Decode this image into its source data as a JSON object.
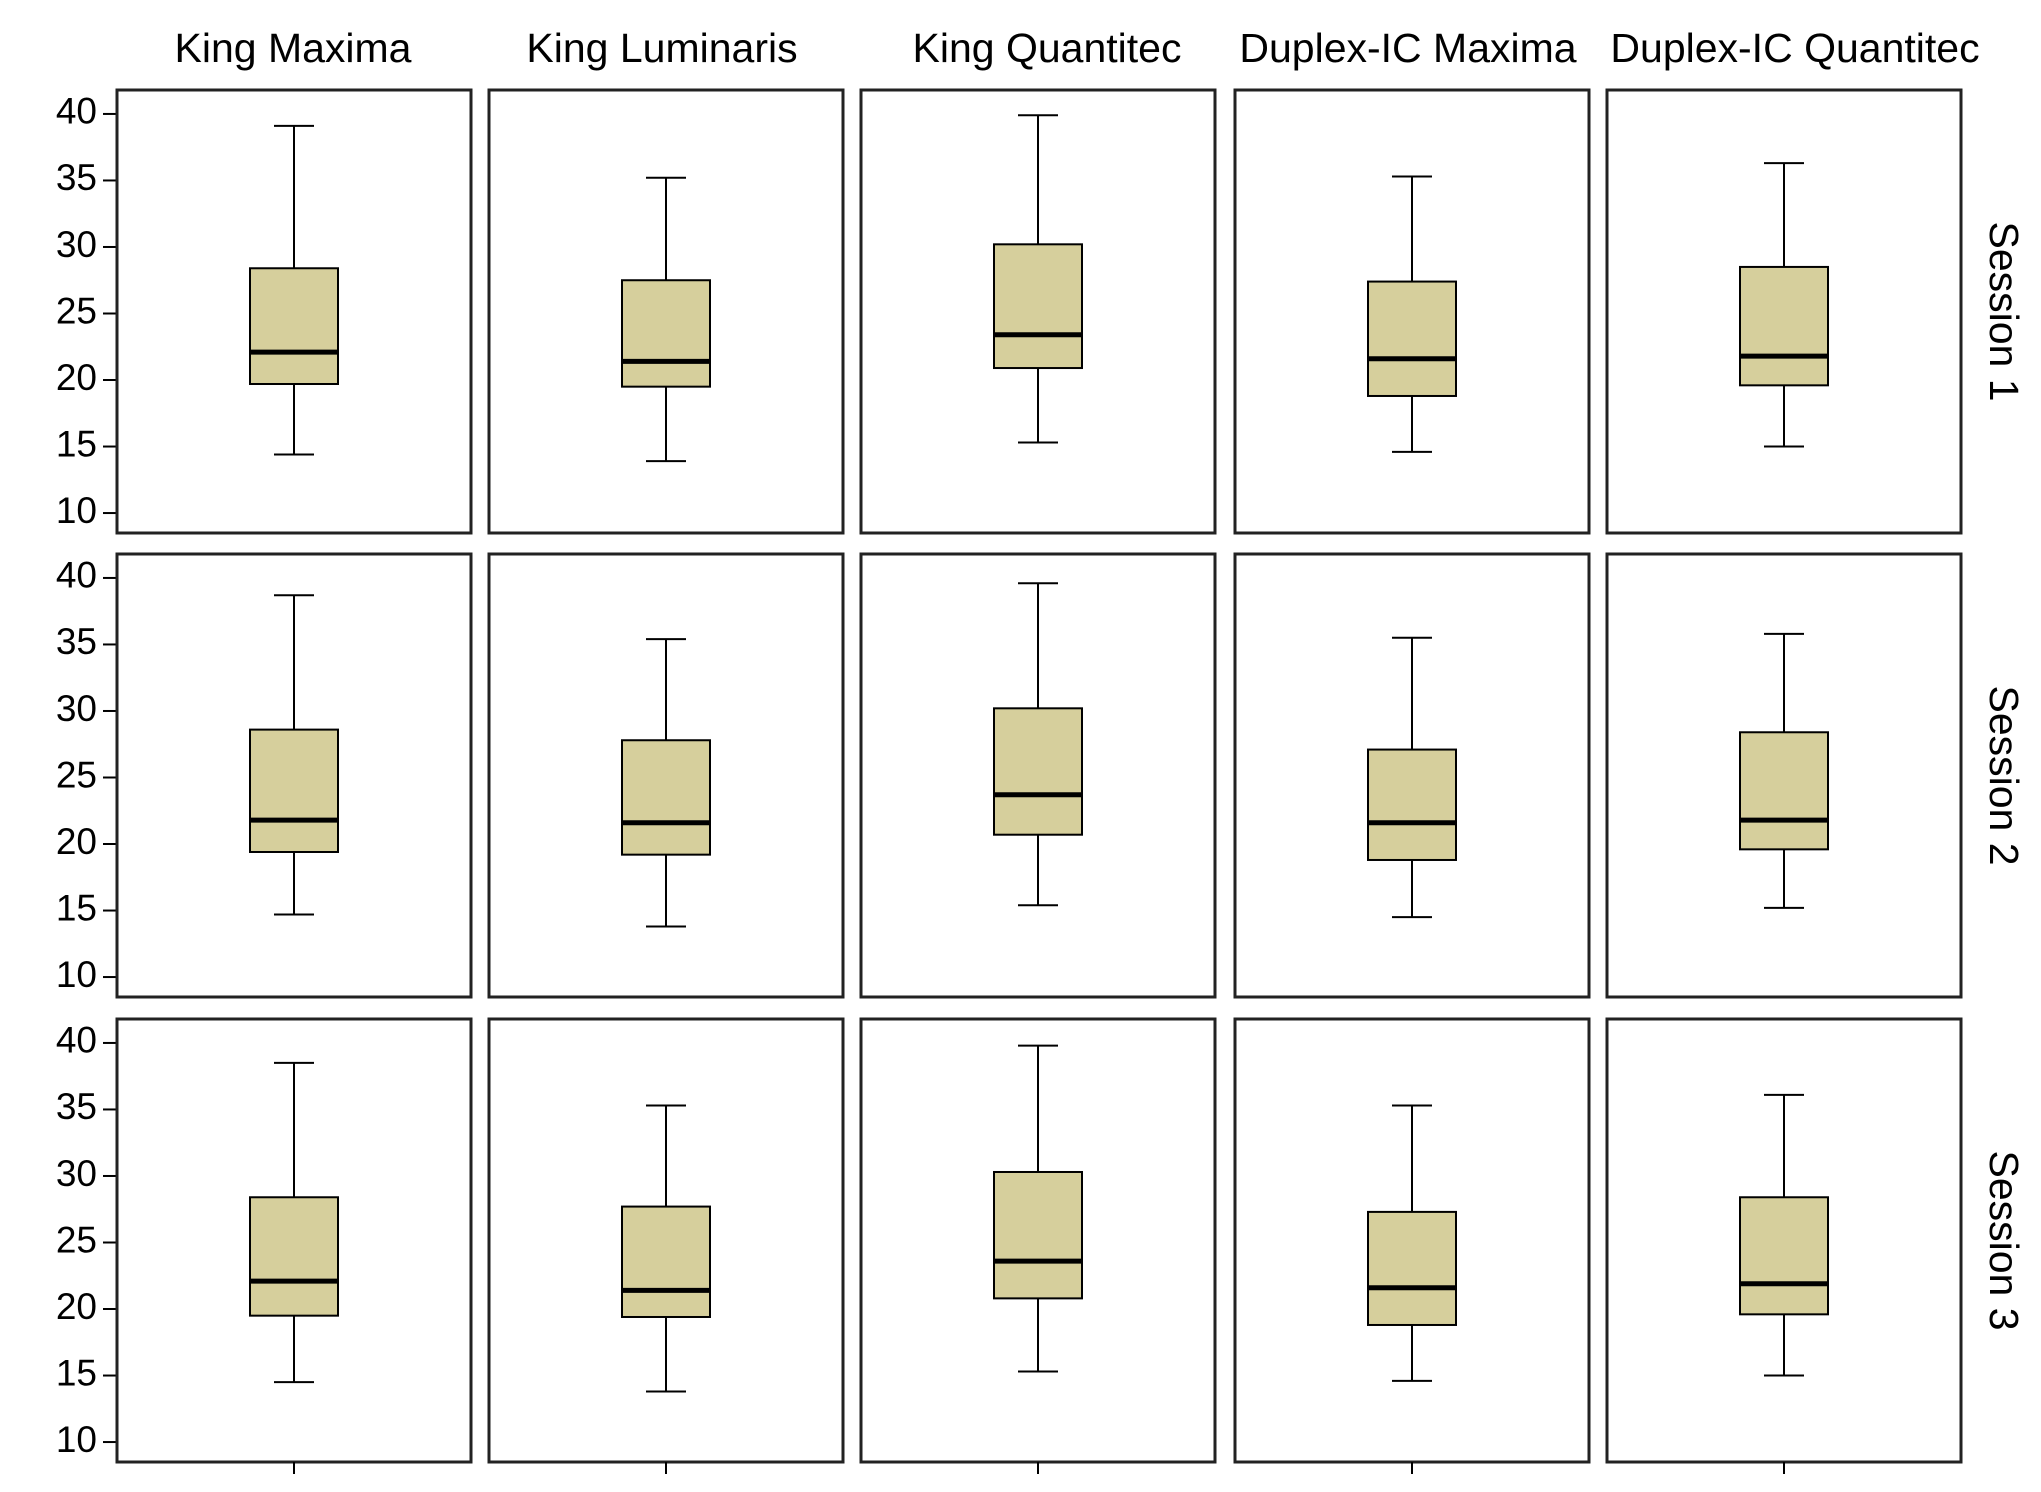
{
  "chart_data": {
    "type": "box",
    "columns": [
      "King Maxima",
      "King Luminaris",
      "King Quantitec",
      "Duplex-IC Maxima",
      "Duplex-IC Quantitec"
    ],
    "rows": [
      "Session 1",
      "Session 2",
      "Session 3"
    ],
    "ylim": [
      8.5,
      41.8
    ],
    "yticks": [
      10,
      15,
      20,
      25,
      30,
      35,
      40
    ],
    "ytick_labels": [
      "10",
      "15",
      "20",
      "25",
      "30",
      "35",
      "40"
    ],
    "grid": false,
    "box_color": "#d6cf9c",
    "line_color": "#000000",
    "data": [
      [
        {
          "min": 14.4,
          "q1": 19.7,
          "median": 22.1,
          "q3": 28.4,
          "max": 39.1
        },
        {
          "min": 13.9,
          "q1": 19.5,
          "median": 21.4,
          "q3": 27.5,
          "max": 35.2
        },
        {
          "min": 15.3,
          "q1": 20.9,
          "median": 23.4,
          "q3": 30.2,
          "max": 39.9
        },
        {
          "min": 14.6,
          "q1": 18.8,
          "median": 21.6,
          "q3": 27.4,
          "max": 35.3
        },
        {
          "min": 15.0,
          "q1": 19.6,
          "median": 21.8,
          "q3": 28.5,
          "max": 36.3
        }
      ],
      [
        {
          "min": 14.7,
          "q1": 19.4,
          "median": 21.8,
          "q3": 28.6,
          "max": 38.7
        },
        {
          "min": 13.8,
          "q1": 19.2,
          "median": 21.6,
          "q3": 27.8,
          "max": 35.4
        },
        {
          "min": 15.4,
          "q1": 20.7,
          "median": 23.7,
          "q3": 30.2,
          "max": 39.6
        },
        {
          "min": 14.5,
          "q1": 18.8,
          "median": 21.6,
          "q3": 27.1,
          "max": 35.5
        },
        {
          "min": 15.2,
          "q1": 19.6,
          "median": 21.8,
          "q3": 28.4,
          "max": 35.8
        }
      ],
      [
        {
          "min": 14.5,
          "q1": 19.5,
          "median": 22.1,
          "q3": 28.4,
          "max": 38.5
        },
        {
          "min": 13.8,
          "q1": 19.4,
          "median": 21.4,
          "q3": 27.7,
          "max": 35.3
        },
        {
          "min": 15.3,
          "q1": 20.8,
          "median": 23.6,
          "q3": 30.3,
          "max": 39.8
        },
        {
          "min": 14.6,
          "q1": 18.8,
          "median": 21.6,
          "q3": 27.3,
          "max": 35.3
        },
        {
          "min": 15.0,
          "q1": 19.6,
          "median": 21.9,
          "q3": 28.4,
          "max": 36.1
        }
      ]
    ]
  }
}
